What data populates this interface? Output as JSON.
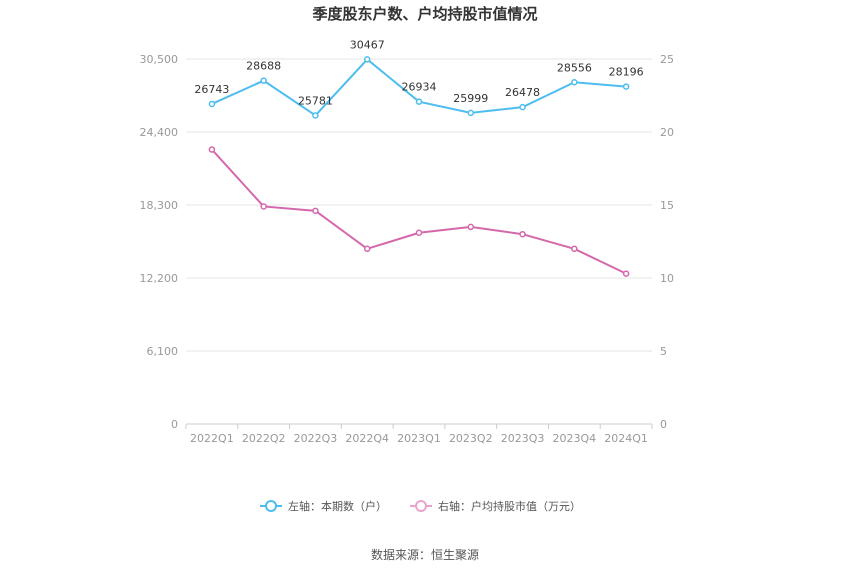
{
  "chart_data": {
    "type": "line",
    "title": "季度股东户数、户均持股市值情况",
    "categories": [
      "2022Q1",
      "2022Q2",
      "2022Q3",
      "2022Q4",
      "2023Q1",
      "2023Q2",
      "2023Q3",
      "2023Q4",
      "2024Q1"
    ],
    "left_axis": {
      "ticks": [
        "0",
        "6,100",
        "12,200",
        "18,300",
        "24,400",
        "30,500"
      ],
      "min": 0,
      "max": 30500
    },
    "right_axis": {
      "ticks": [
        "0",
        "5",
        "10",
        "15",
        "20",
        "25"
      ],
      "min": 0,
      "max": 25
    },
    "series": [
      {
        "name": "左轴：本期数（户）",
        "axis": "left",
        "color": "#4dbdf0",
        "values": [
          26743,
          28688,
          25781,
          30467,
          26934,
          25999,
          26478,
          28556,
          28196
        ],
        "labels": [
          "26743",
          "28688",
          "25781",
          "30467",
          "26934",
          "25999",
          "26478",
          "28556",
          "28196"
        ]
      },
      {
        "name": "右轴：户均持股市值（万元）",
        "axis": "right",
        "color": "#d468ab",
        "values": [
          18.8,
          14.9,
          14.6,
          12.0,
          13.1,
          13.5,
          13.0,
          12.0,
          10.3
        ]
      }
    ],
    "grid": true,
    "legend_position": "bottom",
    "source": "数据来源：恒生聚源"
  }
}
